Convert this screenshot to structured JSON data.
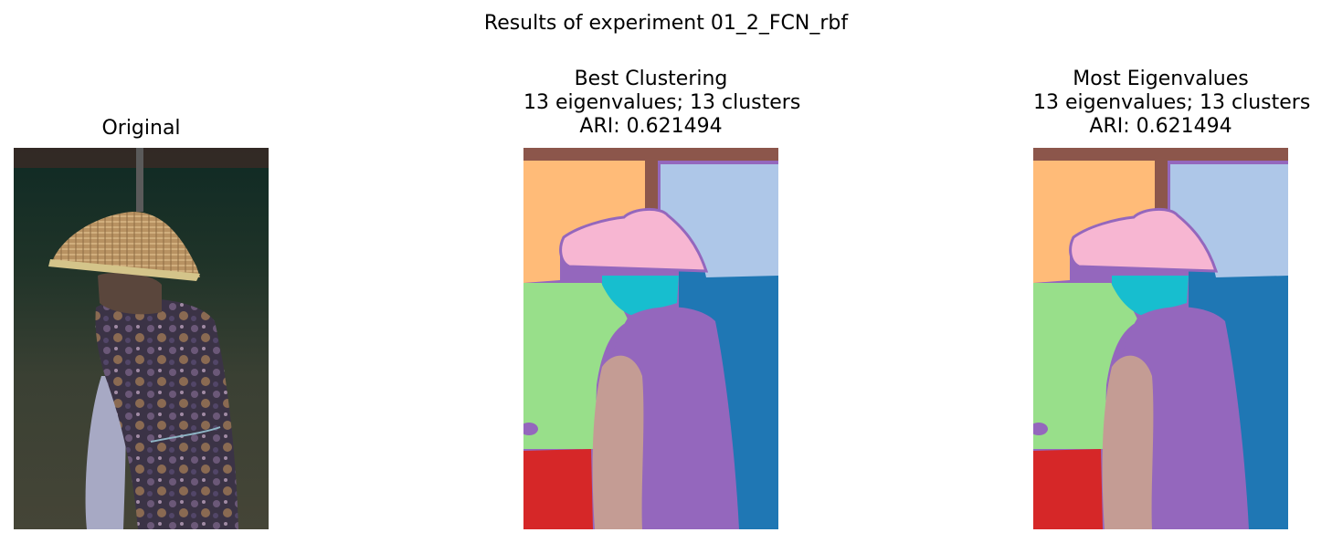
{
  "figure": {
    "suptitle": "Results of experiment 01_2_FCN_rbf"
  },
  "panels": [
    {
      "id": "original",
      "title_lines": [
        "Original"
      ]
    },
    {
      "id": "best",
      "title_lines": [
        "Best Clustering",
        "13 eigenvalues; 13 clusters",
        "ARI: 0.621494"
      ]
    },
    {
      "id": "most",
      "title_lines": [
        "Most Eigenvalues",
        "13 eigenvalues; 13 clusters",
        "ARI: 0.621494"
      ]
    }
  ],
  "segment_colors": {
    "orange": "#ffbb78",
    "light_blue": "#aec7e8",
    "brown": "#8c564b",
    "pink": "#f7b6d2",
    "purple": "#9467bd",
    "cyan": "#17becf",
    "dark_blue": "#1f77b4",
    "green": "#98df8a",
    "red": "#d62728",
    "tan": "#c49c94"
  }
}
